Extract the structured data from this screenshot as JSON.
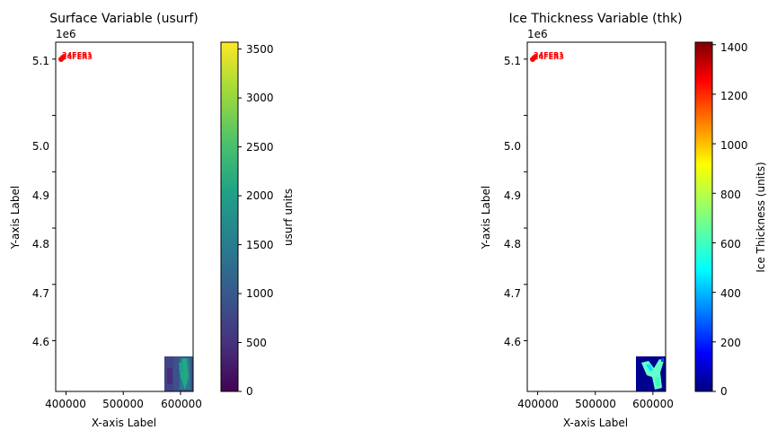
{
  "chart_data": [
    {
      "type": "heatmap",
      "title": "Surface Variable (usurf)",
      "xlabel": "X-axis Label",
      "ylabel": "Y-axis Label",
      "y_offset_label": "1e6",
      "xlim": [
        382000,
        622000
      ],
      "ylim": [
        4.51,
        5.13
      ],
      "xticks": [
        400000,
        500000,
        600000
      ],
      "xtick_labels": [
        "400000",
        "500000",
        "600000"
      ],
      "yticks": [
        4.6,
        4.7,
        4.8,
        4.9,
        5.0,
        5.1
      ],
      "ytick_labels": [
        "4.6",
        "4.7",
        "4.8",
        "4.9",
        "5.0",
        "5.1"
      ],
      "colormap": "viridis",
      "colorbar": {
        "label": "usurf units",
        "vmin": 0,
        "vmax": 3570,
        "ticks": [
          0,
          500,
          1000,
          1500,
          2000,
          2500,
          3000,
          3500
        ],
        "tick_labels": [
          "0",
          "500",
          "1000",
          "1500",
          "2000",
          "2500",
          "3000",
          "3500"
        ]
      },
      "raster_extent": {
        "x": [
          571000,
          622000
        ],
        "y": [
          4.51,
          4.57
        ]
      },
      "points": [
        {
          "x": 387000,
          "y": 5.1,
          "label": "24FER3"
        },
        {
          "x": 390000,
          "y": 5.103,
          "label": "24FER1"
        }
      ],
      "point_color": "#ff0000"
    },
    {
      "type": "heatmap",
      "title": "Ice Thickness Variable (thk)",
      "xlabel": "X-axis Label",
      "ylabel": "Y-axis Label",
      "y_offset_label": "1e6",
      "xlim": [
        382000,
        622000
      ],
      "ylim": [
        4.51,
        5.13
      ],
      "xticks": [
        400000,
        500000,
        600000
      ],
      "xtick_labels": [
        "400000",
        "500000",
        "600000"
      ],
      "yticks": [
        4.6,
        4.7,
        4.8,
        4.9,
        5.0,
        5.1
      ],
      "ytick_labels": [
        "4.6",
        "4.7",
        "4.8",
        "4.9",
        "5.0",
        "5.1"
      ],
      "colormap": "jet",
      "colorbar": {
        "label": "Ice Thickness (units)",
        "vmin": 0,
        "vmax": 1410,
        "ticks": [
          0,
          200,
          400,
          600,
          800,
          1000,
          1200,
          1400
        ],
        "tick_labels": [
          "0",
          "200",
          "400",
          "600",
          "800",
          "1000",
          "1200",
          "1400"
        ]
      },
      "raster_extent": {
        "x": [
          571000,
          622000
        ],
        "y": [
          4.51,
          4.57
        ]
      },
      "points": [
        {
          "x": 387000,
          "y": 5.1,
          "label": "24FER3"
        },
        {
          "x": 390000,
          "y": 5.103,
          "label": "24FER1"
        }
      ],
      "point_color": "#ff0000"
    }
  ]
}
